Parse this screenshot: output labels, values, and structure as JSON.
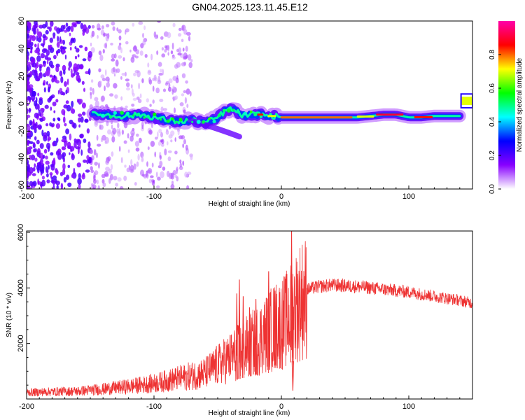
{
  "title": "GN04.2025.123.11.45.E12",
  "chart_data": [
    {
      "type": "heatmap",
      "name": "spectrogram",
      "xlabel": "Height of straight line (km)",
      "ylabel": "Frequency (Hz)",
      "xlim": [
        -200,
        150
      ],
      "ylim": [
        -62,
        60
      ],
      "xticks": [
        -200,
        -100,
        0,
        100
      ],
      "yticks": [
        60,
        40,
        20,
        0,
        -20,
        -40,
        -60
      ],
      "ridge": {
        "x": [
          -148,
          -140,
          -130,
          -120,
          -110,
          -100,
          -90,
          -80,
          -70,
          -60,
          -50,
          -45,
          -40,
          -35,
          -30,
          -25,
          -20,
          -15,
          -10,
          -5,
          0,
          20,
          40,
          60,
          70,
          80,
          90,
          100,
          110,
          120,
          130,
          140,
          141,
          150
        ],
        "y": [
          -8,
          -8,
          -9,
          -9,
          -8,
          -10,
          -12,
          -13,
          -12,
          -14,
          -10,
          -6,
          -4,
          -6,
          -9,
          -8,
          -8,
          -8,
          -9,
          -9,
          -10,
          -10,
          -10,
          -10,
          -9,
          -8,
          -8,
          -10,
          -10,
          -9,
          -9,
          -9,
          2,
          2
        ]
      },
      "colorbar": {
        "label": "Normalized spectral amplitude",
        "range": [
          0,
          1
        ],
        "ticks": [
          0.0,
          0.2,
          0.4,
          0.6,
          0.8
        ],
        "tick_labels": [
          "0.0",
          "0.2",
          "0.4",
          "0.6",
          "0.8"
        ],
        "colors": [
          "#ffffff",
          "#8800ff",
          "#0000ff",
          "#00ffff",
          "#00ff00",
          "#ffff00",
          "#ff0000",
          "#ff00aa"
        ]
      }
    },
    {
      "type": "line",
      "name": "snr",
      "xlabel": "Height of straight line (km)",
      "ylabel": "SNR (10 * v/v)",
      "xlim": [
        -200,
        150
      ],
      "ylim": [
        0,
        6050
      ],
      "xticks": [
        -200,
        -100,
        0,
        100
      ],
      "yticks": [
        2000,
        4000,
        6000
      ],
      "color": "#ee3333",
      "envelope": {
        "x": [
          -200,
          -180,
          -160,
          -140,
          -120,
          -100,
          -80,
          -60,
          -50,
          -40,
          -30,
          -20,
          -15,
          -10,
          -5,
          0,
          5,
          8,
          10,
          12,
          15,
          20,
          30,
          40,
          60,
          80,
          100,
          120,
          140,
          150
        ],
        "y": [
          250,
          280,
          300,
          380,
          480,
          600,
          800,
          1000,
          1300,
          1600,
          1900,
          2200,
          2400,
          2600,
          2800,
          2900,
          3100,
          3300,
          3500,
          3600,
          3800,
          3950,
          4050,
          4100,
          4050,
          3950,
          3850,
          3700,
          3550,
          3450
        ]
      },
      "spikes": [
        {
          "x": -35,
          "y": 3800
        },
        {
          "x": -33,
          "y": 4300
        },
        {
          "x": -30,
          "y": 3700
        },
        {
          "x": -25,
          "y": 3300
        },
        {
          "x": -20,
          "y": 3600
        },
        {
          "x": -10,
          "y": 4600
        },
        {
          "x": -5,
          "y": 3900
        },
        {
          "x": 8,
          "y": 6050
        },
        {
          "x": 9,
          "y": 300
        }
      ]
    }
  ]
}
